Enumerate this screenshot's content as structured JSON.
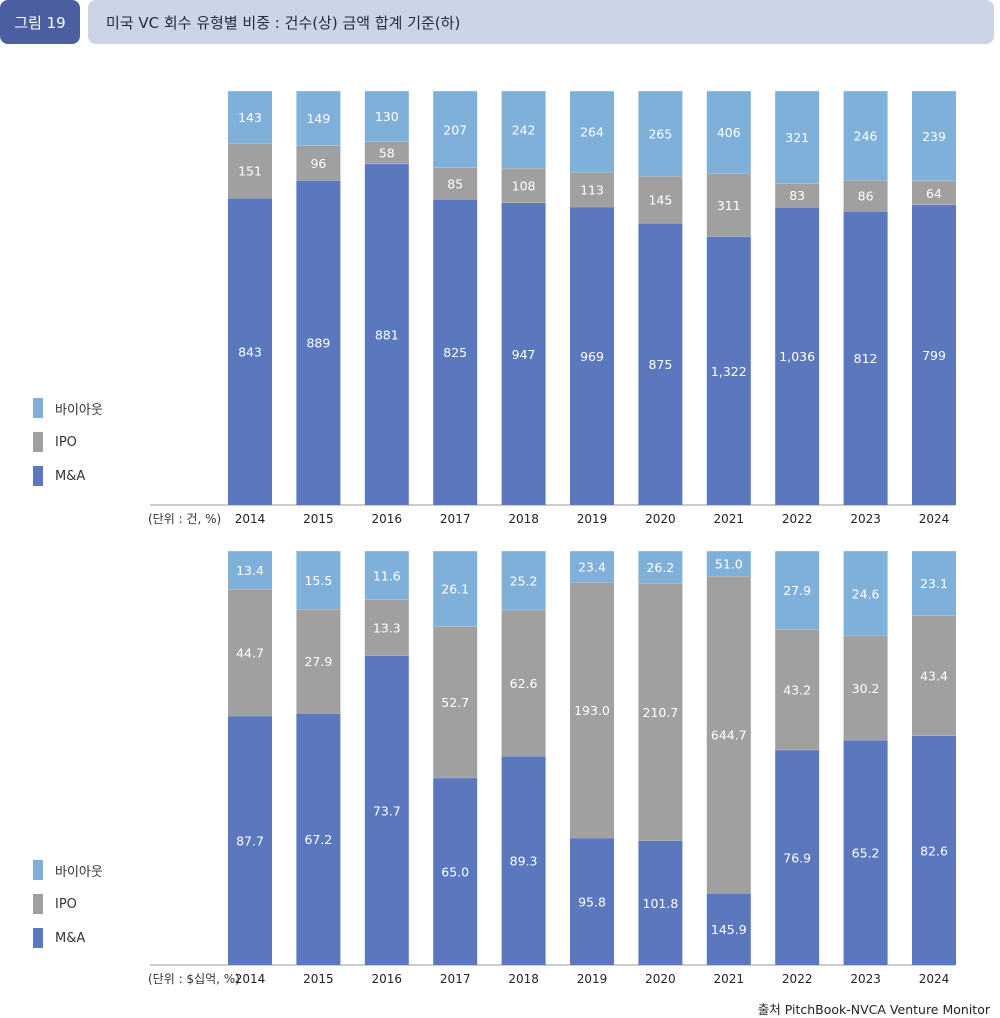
{
  "header": {
    "figure_label": "그림 19",
    "title": "미국 VC 회수 유형별 비중 : 건수(상) 금액 합계 기준(하)"
  },
  "colors": {
    "buyout": "#7fb0da",
    "ipo": "#a0a0a0",
    "ma": "#5b78bf"
  },
  "legend": [
    {
      "label": "바이아웃",
      "key": "buyout"
    },
    {
      "label": "IPO",
      "key": "ipo"
    },
    {
      "label": "M&A",
      "key": "ma"
    }
  ],
  "chart_data": [
    {
      "type": "bar",
      "stacked": "100%",
      "unit_label": "(단위 : 건, %)",
      "categories": [
        "2014",
        "2015",
        "2016",
        "2017",
        "2018",
        "2019",
        "2020",
        "2021",
        "2022",
        "2023",
        "2024"
      ],
      "series": [
        {
          "name": "M&A",
          "key": "ma",
          "values": [
            843,
            889,
            881,
            825,
            947,
            969,
            875,
            1322,
            1036,
            812,
            799
          ],
          "labels": [
            "843",
            "889",
            "881",
            "825",
            "947",
            "969",
            "875",
            "1,322",
            "1,036",
            "812",
            "799"
          ]
        },
        {
          "name": "IPO",
          "key": "ipo",
          "values": [
            151,
            96,
            58,
            85,
            108,
            113,
            145,
            311,
            83,
            86,
            64
          ],
          "labels": [
            "151",
            "96",
            "58",
            "85",
            "108",
            "113",
            "145",
            "311",
            "83",
            "86",
            "64"
          ]
        },
        {
          "name": "바이아웃",
          "key": "buyout",
          "values": [
            143,
            149,
            130,
            207,
            242,
            264,
            265,
            406,
            321,
            246,
            239
          ],
          "labels": [
            "143",
            "149",
            "130",
            "207",
            "242",
            "264",
            "265",
            "406",
            "321",
            "246",
            "239"
          ]
        }
      ]
    },
    {
      "type": "bar",
      "stacked": "100%",
      "unit_label": "(단위 : $십억, %)",
      "categories": [
        "2014",
        "2015",
        "2016",
        "2017",
        "2018",
        "2019",
        "2020",
        "2021",
        "2022",
        "2023",
        "2024"
      ],
      "series": [
        {
          "name": "M&A",
          "key": "ma",
          "values": [
            87.7,
            67.2,
            73.7,
            65.0,
            89.3,
            95.8,
            101.8,
            145.9,
            76.9,
            65.2,
            82.6
          ],
          "labels": [
            "87.7",
            "67.2",
            "73.7",
            "65.0",
            "89.3",
            "95.8",
            "101.8",
            "145.9",
            "76.9",
            "65.2",
            "82.6"
          ]
        },
        {
          "name": "IPO",
          "key": "ipo",
          "values": [
            44.7,
            27.9,
            13.3,
            52.7,
            62.6,
            193.0,
            210.7,
            644.7,
            43.2,
            30.2,
            43.4
          ],
          "labels": [
            "44.7",
            "27.9",
            "13.3",
            "52.7",
            "62.6",
            "193.0",
            "210.7",
            "644.7",
            "43.2",
            "30.2",
            "43.4"
          ]
        },
        {
          "name": "바이아웃",
          "key": "buyout",
          "values": [
            13.4,
            15.5,
            11.6,
            26.1,
            25.2,
            23.4,
            26.2,
            51.0,
            27.9,
            24.6,
            23.1
          ],
          "labels": [
            "13.4",
            "15.5",
            "11.6",
            "26.1",
            "25.2",
            "23.4",
            "26.2",
            "51.0",
            "27.9",
            "24.6",
            "23.1"
          ]
        }
      ]
    }
  ],
  "source": "출처 PitchBook-NVCA Venture Monitor"
}
